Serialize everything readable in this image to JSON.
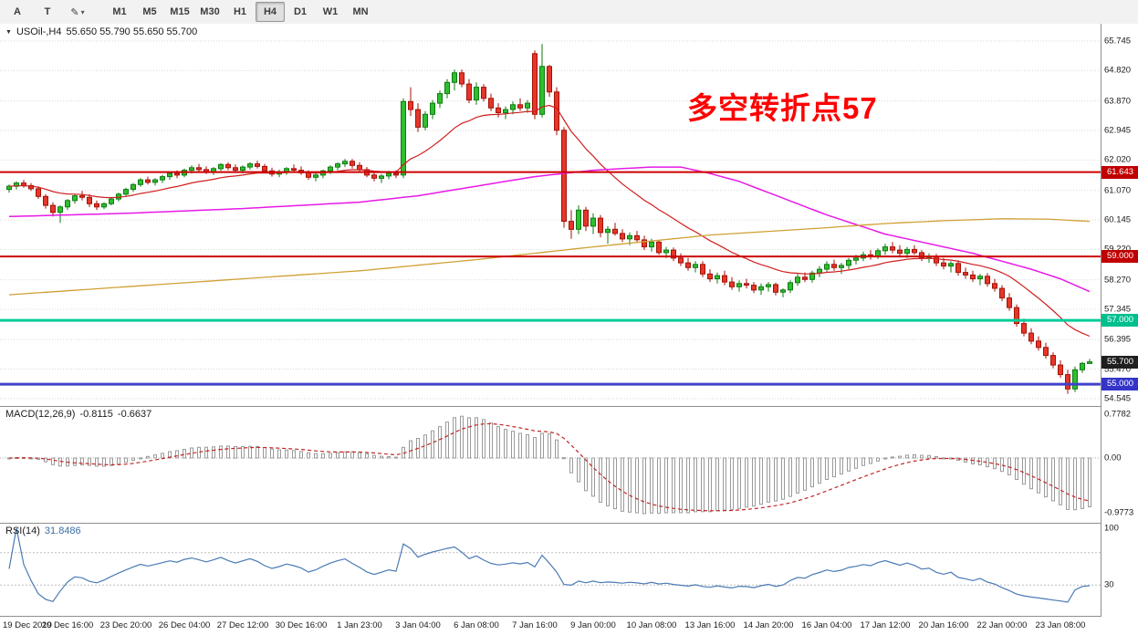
{
  "toolbar": {
    "tool_buttons": [
      {
        "label": "A"
      },
      {
        "label": "T"
      },
      {
        "label": "✎",
        "caret": "▾"
      }
    ],
    "timeframes": [
      {
        "label": "M1",
        "active": false
      },
      {
        "label": "M5",
        "active": false
      },
      {
        "label": "M15",
        "active": false
      },
      {
        "label": "M30",
        "active": false
      },
      {
        "label": "H1",
        "active": false
      },
      {
        "label": "H4",
        "active": true
      },
      {
        "label": "D1",
        "active": false
      },
      {
        "label": "W1",
        "active": false
      },
      {
        "label": "MN",
        "active": false
      }
    ]
  },
  "chart_header": {
    "collapse_icon": "▼",
    "symbol": "USOil-,H4",
    "ohlc": "55.650 55.790 55.650 55.700"
  },
  "annotation": {
    "text": "多空转折点57",
    "color": "#fe0000"
  },
  "price_axis": {
    "badges": [
      {
        "text": "61.643",
        "price": 61.643,
        "bg": "#c00000"
      },
      {
        "text": "59.000",
        "price": 59.0,
        "bg": "#c00000"
      },
      {
        "text": "57.000",
        "price": 57.0,
        "bg": "#00bf8f"
      },
      {
        "text": "55.700",
        "price": 55.7,
        "bg": "#1f1f1f"
      },
      {
        "text": "55.000",
        "price": 55.0,
        "bg": "#3434c8"
      }
    ]
  },
  "chart_data": {
    "type": "candlestick",
    "symbol": "USOil-",
    "timeframe": "H4",
    "current_ohlc": {
      "open": 55.65,
      "high": 55.79,
      "low": 55.65,
      "close": 55.7
    },
    "ylim": [
      54.545,
      65.745
    ],
    "price_ticks": [
      "65.745",
      "64.820",
      "63.870",
      "62.945",
      "62.020",
      "61.070",
      "60.145",
      "59.220",
      "58.270",
      "57.345",
      "56.395",
      "55.470",
      "54.545"
    ],
    "hlines": [
      {
        "price": 61.643,
        "color": "#cc0000",
        "w": 2
      },
      {
        "price": 59.0,
        "color": "#cc0000",
        "w": 2
      },
      {
        "price": 57.0,
        "color": "#00cc99",
        "w": 3
      },
      {
        "price": 55.0,
        "color": "#4040cc",
        "w": 3
      }
    ],
    "time_labels": [
      [
        0,
        "19 Dec 2019"
      ],
      [
        8,
        "20 Dec 16:00"
      ],
      [
        16,
        "23 Dec 20:00"
      ],
      [
        24,
        "26 Dec 04:00"
      ],
      [
        32,
        "27 Dec 12:00"
      ],
      [
        40,
        "30 Dec 16:00"
      ],
      [
        48,
        "1 Jan 23:00"
      ],
      [
        56,
        "3 Jan 04:00"
      ],
      [
        64,
        "6 Jan 08:00"
      ],
      [
        72,
        "7 Jan 16:00"
      ],
      [
        80,
        "9 Jan 00:00"
      ],
      [
        88,
        "10 Jan 08:00"
      ],
      [
        96,
        "13 Jan 16:00"
      ],
      [
        104,
        "14 Jan 20:00"
      ],
      [
        112,
        "16 Jan 04:00"
      ],
      [
        120,
        "17 Jan 12:00"
      ],
      [
        128,
        "20 Jan 16:00"
      ],
      [
        136,
        "22 Jan 00:00"
      ],
      [
        144,
        "23 Jan 08:00"
      ]
    ],
    "ma": {
      "red_period": 18,
      "magenta_points": [
        [
          0,
          60.25
        ],
        [
          16,
          60.35
        ],
        [
          32,
          60.5
        ],
        [
          48,
          60.7
        ],
        [
          56,
          60.9
        ],
        [
          64,
          61.2
        ],
        [
          72,
          61.5
        ],
        [
          80,
          61.7
        ],
        [
          88,
          61.8
        ],
        [
          92,
          61.8
        ],
        [
          96,
          61.6
        ],
        [
          100,
          61.35
        ],
        [
          104,
          61.0
        ],
        [
          108,
          60.65
        ],
        [
          112,
          60.3
        ],
        [
          116,
          60.0
        ],
        [
          120,
          59.7
        ],
        [
          124,
          59.5
        ],
        [
          128,
          59.3
        ],
        [
          132,
          59.1
        ],
        [
          136,
          58.85
        ],
        [
          140,
          58.6
        ],
        [
          144,
          58.3
        ],
        [
          148,
          57.9
        ]
      ],
      "orange_points": [
        [
          0,
          57.8
        ],
        [
          16,
          58.05
        ],
        [
          32,
          58.3
        ],
        [
          48,
          58.55
        ],
        [
          64,
          58.9
        ],
        [
          80,
          59.3
        ],
        [
          96,
          59.67
        ],
        [
          112,
          59.9
        ],
        [
          120,
          60.03
        ],
        [
          128,
          60.12
        ],
        [
          136,
          60.18
        ],
        [
          142,
          60.17
        ],
        [
          148,
          60.1
        ]
      ]
    },
    "colors": {
      "up": "#2fbf2f",
      "up_stroke": "#0e7a12",
      "down": "#e5362a",
      "down_stroke": "#a31207",
      "ma_red": "#cf1f1f",
      "ma_magenta": "#e61ae6",
      "ma_orange": "#d0a035"
    },
    "candles": [
      [
        61.1,
        61.25,
        61.0,
        61.2
      ],
      [
        61.2,
        61.35,
        61.1,
        61.3
      ],
      [
        61.3,
        61.4,
        61.15,
        61.22
      ],
      [
        61.22,
        61.3,
        61.05,
        61.12
      ],
      [
        61.12,
        61.2,
        60.8,
        60.88
      ],
      [
        60.88,
        60.95,
        60.5,
        60.6
      ],
      [
        60.6,
        60.7,
        60.25,
        60.38
      ],
      [
        60.38,
        60.6,
        60.05,
        60.55
      ],
      [
        60.55,
        60.8,
        60.45,
        60.75
      ],
      [
        60.75,
        60.95,
        60.65,
        60.9
      ],
      [
        60.9,
        61.05,
        60.75,
        60.85
      ],
      [
        60.85,
        60.95,
        60.55,
        60.65
      ],
      [
        60.65,
        60.75,
        60.45,
        60.55
      ],
      [
        60.55,
        60.7,
        60.48,
        60.65
      ],
      [
        60.65,
        60.85,
        60.6,
        60.8
      ],
      [
        60.8,
        61.0,
        60.72,
        60.95
      ],
      [
        60.95,
        61.15,
        60.88,
        61.1
      ],
      [
        61.1,
        61.3,
        61.02,
        61.25
      ],
      [
        61.25,
        61.45,
        61.18,
        61.4
      ],
      [
        61.4,
        61.5,
        61.25,
        61.32
      ],
      [
        61.32,
        61.45,
        61.22,
        61.4
      ],
      [
        61.4,
        61.55,
        61.3,
        61.5
      ],
      [
        61.5,
        61.65,
        61.4,
        61.6
      ],
      [
        61.6,
        61.7,
        61.45,
        61.55
      ],
      [
        61.55,
        61.75,
        61.48,
        61.7
      ],
      [
        61.7,
        61.85,
        61.6,
        61.78
      ],
      [
        61.78,
        61.9,
        61.65,
        61.72
      ],
      [
        61.72,
        61.82,
        61.58,
        61.65
      ],
      [
        61.65,
        61.8,
        61.55,
        61.75
      ],
      [
        61.75,
        61.92,
        61.68,
        61.88
      ],
      [
        61.88,
        61.95,
        61.7,
        61.78
      ],
      [
        61.78,
        61.88,
        61.62,
        61.7
      ],
      [
        61.7,
        61.85,
        61.6,
        61.8
      ],
      [
        61.8,
        61.95,
        61.72,
        61.9
      ],
      [
        61.9,
        62.0,
        61.75,
        61.82
      ],
      [
        61.82,
        61.9,
        61.6,
        61.68
      ],
      [
        61.68,
        61.78,
        61.5,
        61.58
      ],
      [
        61.58,
        61.72,
        61.48,
        61.65
      ],
      [
        61.65,
        61.8,
        61.55,
        61.75
      ],
      [
        61.75,
        61.88,
        61.62,
        61.7
      ],
      [
        61.7,
        61.82,
        61.55,
        61.62
      ],
      [
        61.62,
        61.7,
        61.4,
        61.48
      ],
      [
        61.48,
        61.6,
        61.35,
        61.55
      ],
      [
        61.55,
        61.72,
        61.45,
        61.68
      ],
      [
        61.68,
        61.85,
        61.58,
        61.8
      ],
      [
        61.8,
        61.95,
        61.7,
        61.9
      ],
      [
        61.9,
        62.05,
        61.8,
        61.98
      ],
      [
        61.98,
        62.05,
        61.75,
        61.85
      ],
      [
        61.85,
        61.95,
        61.65,
        61.72
      ],
      [
        61.72,
        61.8,
        61.48,
        61.55
      ],
      [
        61.55,
        61.65,
        61.35,
        61.45
      ],
      [
        61.45,
        61.58,
        61.3,
        61.52
      ],
      [
        61.52,
        61.68,
        61.42,
        61.6
      ],
      [
        61.6,
        61.7,
        61.45,
        61.55
      ],
      [
        61.55,
        63.95,
        61.45,
        63.85
      ],
      [
        63.85,
        64.3,
        63.4,
        63.6
      ],
      [
        63.6,
        63.8,
        62.9,
        63.05
      ],
      [
        63.05,
        63.55,
        62.95,
        63.45
      ],
      [
        63.45,
        63.9,
        63.3,
        63.8
      ],
      [
        63.8,
        64.2,
        63.65,
        64.1
      ],
      [
        64.1,
        64.55,
        63.95,
        64.45
      ],
      [
        64.45,
        64.85,
        64.2,
        64.75
      ],
      [
        64.75,
        64.85,
        64.3,
        64.4
      ],
      [
        64.4,
        64.55,
        63.8,
        63.9
      ],
      [
        63.9,
        64.45,
        63.75,
        64.3
      ],
      [
        64.3,
        64.4,
        63.85,
        63.95
      ],
      [
        63.95,
        64.1,
        63.55,
        63.65
      ],
      [
        63.65,
        63.8,
        63.35,
        63.5
      ],
      [
        63.5,
        63.7,
        63.3,
        63.6
      ],
      [
        63.6,
        63.85,
        63.45,
        63.75
      ],
      [
        63.75,
        63.95,
        63.55,
        63.65
      ],
      [
        63.65,
        63.9,
        63.5,
        63.8
      ],
      [
        65.35,
        65.45,
        63.3,
        63.45
      ],
      [
        63.45,
        65.65,
        63.35,
        64.95
      ],
      [
        64.95,
        65.0,
        64.0,
        64.15
      ],
      [
        64.15,
        64.3,
        62.8,
        62.95
      ],
      [
        62.95,
        63.05,
        59.9,
        60.1
      ],
      [
        60.1,
        60.45,
        59.55,
        59.85
      ],
      [
        59.85,
        60.6,
        59.7,
        60.45
      ],
      [
        60.45,
        60.55,
        59.8,
        59.95
      ],
      [
        59.95,
        60.35,
        59.7,
        60.2
      ],
      [
        60.2,
        60.3,
        59.6,
        59.75
      ],
      [
        59.75,
        59.95,
        59.4,
        59.85
      ],
      [
        59.85,
        60.05,
        59.65,
        59.72
      ],
      [
        59.72,
        59.85,
        59.45,
        59.55
      ],
      [
        59.55,
        59.75,
        59.35,
        59.65
      ],
      [
        59.65,
        59.8,
        59.45,
        59.52
      ],
      [
        59.52,
        59.65,
        59.2,
        59.3
      ],
      [
        59.3,
        59.55,
        59.15,
        59.45
      ],
      [
        59.45,
        59.5,
        59.05,
        59.12
      ],
      [
        59.12,
        59.3,
        58.95,
        59.2
      ],
      [
        59.2,
        59.28,
        58.85,
        58.95
      ],
      [
        58.95,
        59.1,
        58.7,
        58.8
      ],
      [
        58.8,
        58.95,
        58.55,
        58.65
      ],
      [
        58.65,
        58.85,
        58.5,
        58.75
      ],
      [
        58.75,
        58.85,
        58.35,
        58.45
      ],
      [
        58.45,
        58.6,
        58.2,
        58.3
      ],
      [
        58.3,
        58.5,
        58.15,
        58.4
      ],
      [
        58.4,
        58.55,
        58.1,
        58.2
      ],
      [
        58.2,
        58.35,
        57.95,
        58.05
      ],
      [
        58.05,
        58.25,
        57.9,
        58.15
      ],
      [
        58.15,
        58.3,
        58.0,
        58.1
      ],
      [
        58.1,
        58.2,
        57.85,
        57.95
      ],
      [
        57.95,
        58.15,
        57.8,
        58.05
      ],
      [
        58.05,
        58.2,
        57.9,
        58.12
      ],
      [
        58.12,
        58.18,
        57.78,
        57.88
      ],
      [
        57.88,
        58.0,
        57.72,
        57.95
      ],
      [
        57.95,
        58.25,
        57.85,
        58.18
      ],
      [
        58.18,
        58.45,
        58.08,
        58.35
      ],
      [
        58.35,
        58.5,
        58.2,
        58.28
      ],
      [
        58.28,
        58.55,
        58.18,
        58.48
      ],
      [
        58.48,
        58.7,
        58.35,
        58.6
      ],
      [
        58.6,
        58.85,
        58.5,
        58.75
      ],
      [
        58.75,
        58.9,
        58.55,
        58.65
      ],
      [
        58.65,
        58.8,
        58.45,
        58.72
      ],
      [
        58.72,
        58.95,
        58.6,
        58.88
      ],
      [
        58.88,
        59.05,
        58.75,
        58.95
      ],
      [
        58.95,
        59.15,
        58.85,
        59.05
      ],
      [
        59.05,
        59.2,
        58.9,
        59.0
      ],
      [
        59.0,
        59.25,
        58.92,
        59.18
      ],
      [
        59.18,
        59.4,
        59.05,
        59.3
      ],
      [
        59.3,
        59.45,
        59.1,
        59.2
      ],
      [
        59.2,
        59.35,
        59.0,
        59.1
      ],
      [
        59.1,
        59.3,
        58.95,
        59.22
      ],
      [
        59.22,
        59.35,
        59.05,
        59.12
      ],
      [
        59.12,
        59.2,
        58.85,
        58.95
      ],
      [
        58.95,
        59.1,
        58.8,
        59.0
      ],
      [
        59.0,
        59.08,
        58.7,
        58.8
      ],
      [
        58.8,
        58.95,
        58.6,
        58.7
      ],
      [
        58.7,
        58.85,
        58.5,
        58.78
      ],
      [
        58.78,
        58.88,
        58.4,
        58.5
      ],
      [
        58.5,
        58.65,
        58.3,
        58.42
      ],
      [
        58.42,
        58.55,
        58.2,
        58.3
      ],
      [
        58.3,
        58.45,
        58.1,
        58.38
      ],
      [
        58.38,
        58.48,
        58.05,
        58.15
      ],
      [
        58.15,
        58.3,
        57.9,
        58.0
      ],
      [
        58.0,
        58.1,
        57.6,
        57.7
      ],
      [
        57.7,
        57.85,
        57.3,
        57.4
      ],
      [
        57.4,
        57.5,
        56.8,
        56.9
      ],
      [
        56.9,
        57.05,
        56.5,
        56.6
      ],
      [
        56.6,
        56.75,
        56.25,
        56.35
      ],
      [
        56.35,
        56.5,
        56.05,
        56.15
      ],
      [
        56.15,
        56.3,
        55.8,
        55.9
      ],
      [
        55.9,
        56.0,
        55.5,
        55.6
      ],
      [
        55.6,
        55.75,
        55.2,
        55.3
      ],
      [
        55.3,
        55.45,
        54.7,
        54.85
      ],
      [
        54.85,
        55.55,
        54.75,
        55.45
      ],
      [
        55.45,
        55.7,
        55.35,
        55.65
      ],
      [
        55.65,
        55.79,
        55.65,
        55.7
      ]
    ]
  },
  "macd_panel": {
    "label": "MACD(12,26,9)",
    "value_main": "-0.8115",
    "value_signal": "-0.6637",
    "params": {
      "fast": 12,
      "slow": 26,
      "signal": 9
    },
    "scale_labels": {
      "max": "0.7782",
      "zero": "0.00",
      "min": "-0.9773"
    }
  },
  "rsi_panel": {
    "label": "RSI(14)",
    "value": "31.8486",
    "period": 14,
    "levels": [
      70,
      30
    ],
    "scale_labels": [
      "100",
      "30"
    ]
  }
}
